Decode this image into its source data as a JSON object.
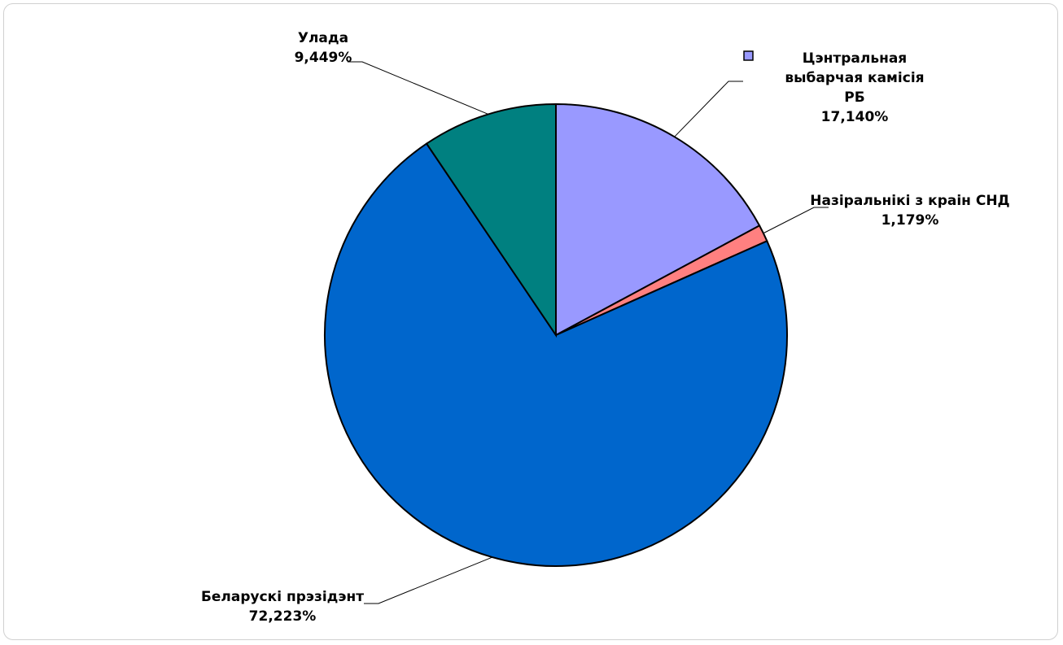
{
  "chart_data": {
    "type": "pie",
    "categories": [
      "Цэнтральная выбарчая камісія РБ",
      "Назіральнікі з краін СНД",
      "Беларускі прэзідэнт",
      "Улада"
    ],
    "values": [
      17.14,
      1.179,
      72.223,
      9.449
    ],
    "value_labels": [
      "17,140%",
      "1,179%",
      "72,223%",
      "9,449%"
    ],
    "colors": [
      "#9999ff",
      "#ff8080",
      "#0066cc",
      "#008080"
    ]
  }
}
